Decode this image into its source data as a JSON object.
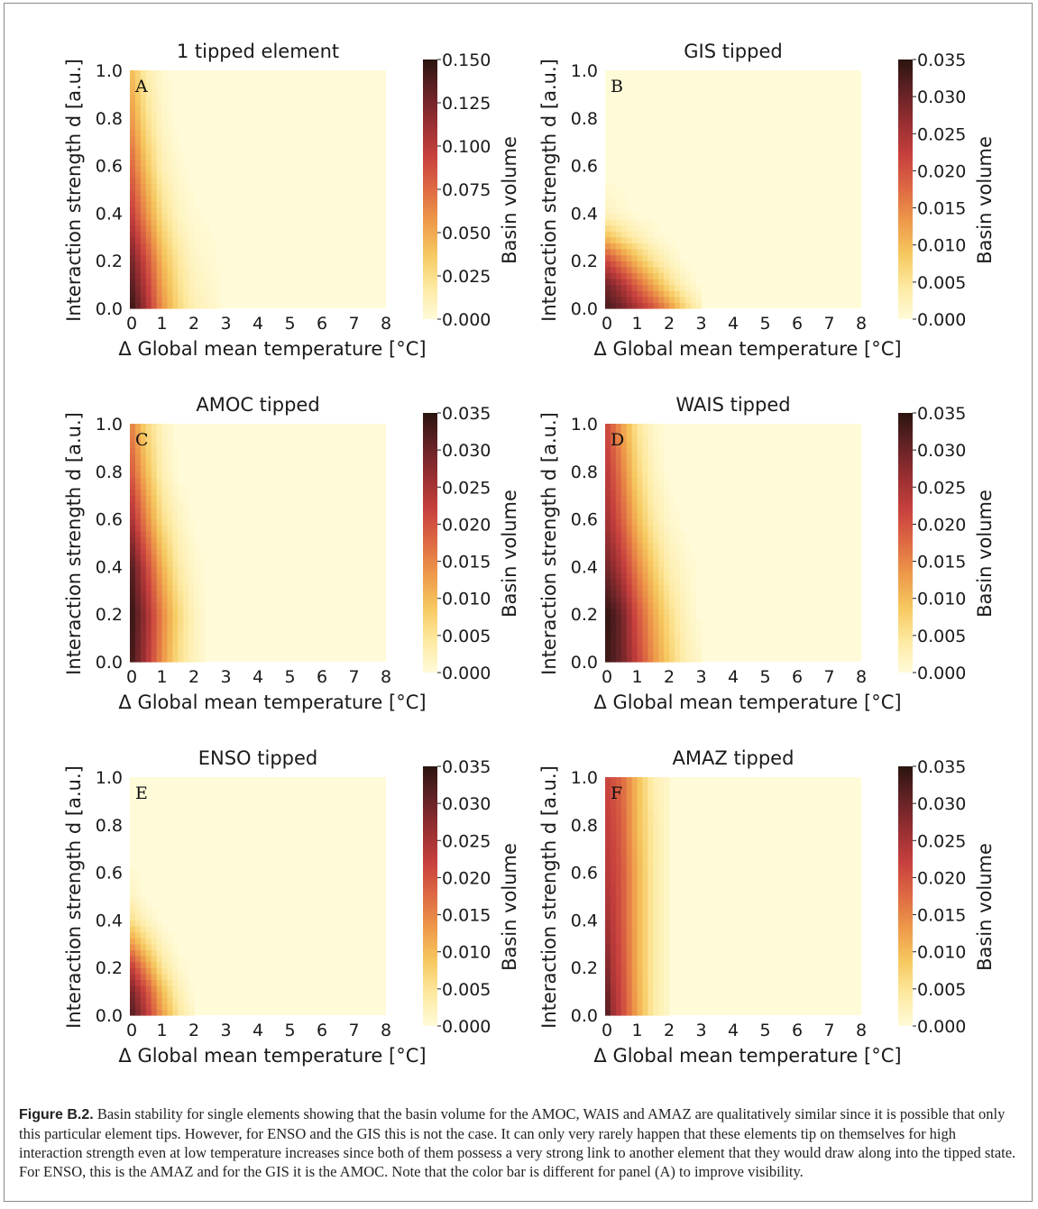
{
  "caption": {
    "label": "Figure B.2.",
    "text": "Basin stability for single elements showing that the basin volume for the AMOC, WAIS and AMAZ are qualitatively similar since it is possible that only this particular element tips. However, for ENSO and the GIS this is not the case. It can only very rarely happen that these elements tip on themselves for high interaction strength even at low temperature increases since both of them possess a very strong link to another element that they would draw along into the tipped state. For ENSO, this is the AMAZ and for the GIS it is the AMOC. Note that the color bar is different for panel (A) to improve visibility."
  },
  "colorscale": [
    "#fffbd9",
    "#fde9a0",
    "#f6c85f",
    "#ee9a4a",
    "#de6a43",
    "#c8413e",
    "#9a2f32",
    "#642226",
    "#2a140f"
  ],
  "chart_data": [
    {
      "type": "heatmap",
      "panel": "A",
      "title": "1 tipped element",
      "xlabel": "Δ Global mean temperature [°C]",
      "ylabel": "Interaction strength d [a.u.]",
      "xlim": [
        0,
        8
      ],
      "ylim": [
        0,
        1
      ],
      "xticks": [
        "0",
        "1",
        "2",
        "3",
        "4",
        "5",
        "6",
        "7",
        "8"
      ],
      "yticks": [
        "0.0",
        "0.2",
        "0.4",
        "0.6",
        "0.8",
        "1.0"
      ],
      "colorbar": {
        "label": "Basin volume",
        "min": 0,
        "max": 0.15,
        "ticks": [
          "0.000",
          "0.025",
          "0.050",
          "0.075",
          "0.100",
          "0.125",
          "0.150"
        ]
      },
      "approx_values": {
        "x": [
          0,
          0.5,
          1,
          1.5,
          2,
          3
        ],
        "y": [
          0,
          0.2,
          0.4,
          0.6,
          0.8,
          1.0
        ],
        "z": [
          [
            0.15,
            0.11,
            0.06,
            0.03,
            0.012,
            0
          ],
          [
            0.13,
            0.09,
            0.045,
            0.02,
            0.006,
            0
          ],
          [
            0.1,
            0.06,
            0.025,
            0.008,
            0.002,
            0
          ],
          [
            0.08,
            0.04,
            0.012,
            0.003,
            0,
            0
          ],
          [
            0.06,
            0.025,
            0.006,
            0,
            0,
            0
          ],
          [
            0.045,
            0.015,
            0.003,
            0,
            0,
            0
          ]
        ]
      }
    },
    {
      "type": "heatmap",
      "panel": "B",
      "title": "GIS tipped",
      "xlabel": "Δ Global mean temperature [°C]",
      "ylabel": "Interaction strength d [a.u.]",
      "xlim": [
        0,
        8
      ],
      "ylim": [
        0,
        1
      ],
      "xticks": [
        "0",
        "1",
        "2",
        "3",
        "4",
        "5",
        "6",
        "7",
        "8"
      ],
      "yticks": [
        "0.0",
        "0.2",
        "0.4",
        "0.6",
        "0.8",
        "1.0"
      ],
      "colorbar": {
        "label": "Basin volume",
        "min": 0,
        "max": 0.035,
        "ticks": [
          "0.000",
          "0.005",
          "0.010",
          "0.015",
          "0.020",
          "0.025",
          "0.030",
          "0.035"
        ]
      },
      "approx_values": {
        "x": [
          0,
          0.5,
          1,
          1.5,
          2,
          2.5,
          3
        ],
        "y": [
          0,
          0.1,
          0.2,
          0.3,
          0.4
        ],
        "z": [
          [
            0.033,
            0.03,
            0.025,
            0.02,
            0.014,
            0.007,
            0.002
          ],
          [
            0.03,
            0.025,
            0.018,
            0.012,
            0.006,
            0.002,
            0
          ],
          [
            0.022,
            0.016,
            0.01,
            0.005,
            0.002,
            0,
            0
          ],
          [
            0.01,
            0.006,
            0.003,
            0.001,
            0,
            0,
            0
          ],
          [
            0.002,
            0.001,
            0,
            0,
            0,
            0,
            0
          ]
        ]
      }
    },
    {
      "type": "heatmap",
      "panel": "C",
      "title": "AMOC tipped",
      "xlabel": "Δ Global mean temperature [°C]",
      "ylabel": "Interaction strength d [a.u.]",
      "xlim": [
        0,
        8
      ],
      "ylim": [
        0,
        1
      ],
      "xticks": [
        "0",
        "1",
        "2",
        "3",
        "4",
        "5",
        "6",
        "7",
        "8"
      ],
      "yticks": [
        "0.0",
        "0.2",
        "0.4",
        "0.6",
        "0.8",
        "1.0"
      ],
      "colorbar": {
        "label": "Basin volume",
        "min": 0,
        "max": 0.035,
        "ticks": [
          "0.000",
          "0.005",
          "0.010",
          "0.015",
          "0.020",
          "0.025",
          "0.030",
          "0.035"
        ]
      },
      "approx_values": {
        "x": [
          0,
          0.5,
          1,
          1.5,
          2,
          2.5
        ],
        "y": [
          0,
          0.2,
          0.4,
          0.6,
          0.8,
          1.0
        ],
        "z": [
          [
            0.034,
            0.025,
            0.014,
            0.006,
            0.002,
            0
          ],
          [
            0.035,
            0.026,
            0.015,
            0.007,
            0.002,
            0
          ],
          [
            0.033,
            0.022,
            0.011,
            0.004,
            0.001,
            0
          ],
          [
            0.026,
            0.015,
            0.006,
            0.002,
            0,
            0
          ],
          [
            0.02,
            0.01,
            0.003,
            0,
            0,
            0
          ],
          [
            0.016,
            0.007,
            0.002,
            0,
            0,
            0
          ]
        ]
      }
    },
    {
      "type": "heatmap",
      "panel": "D",
      "title": "WAIS tipped",
      "xlabel": "Δ Global mean temperature [°C]",
      "ylabel": "Interaction strength d [a.u.]",
      "xlim": [
        0,
        8
      ],
      "ylim": [
        0,
        1
      ],
      "xticks": [
        "0",
        "1",
        "2",
        "3",
        "4",
        "5",
        "6",
        "7",
        "8"
      ],
      "yticks": [
        "0.0",
        "0.2",
        "0.4",
        "0.6",
        "0.8",
        "1.0"
      ],
      "colorbar": {
        "label": "Basin volume",
        "min": 0,
        "max": 0.035,
        "ticks": [
          "0.000",
          "0.005",
          "0.010",
          "0.015",
          "0.020",
          "0.025",
          "0.030",
          "0.035"
        ]
      },
      "approx_values": {
        "x": [
          0,
          0.5,
          1,
          1.5,
          2,
          2.5,
          3
        ],
        "y": [
          0,
          0.2,
          0.4,
          0.6,
          0.8,
          1.0
        ],
        "z": [
          [
            0.034,
            0.03,
            0.022,
            0.014,
            0.008,
            0.003,
            0.001
          ],
          [
            0.035,
            0.03,
            0.02,
            0.012,
            0.006,
            0.002,
            0
          ],
          [
            0.03,
            0.024,
            0.015,
            0.008,
            0.003,
            0.001,
            0
          ],
          [
            0.026,
            0.019,
            0.01,
            0.004,
            0.001,
            0,
            0
          ],
          [
            0.024,
            0.016,
            0.007,
            0.002,
            0,
            0,
            0
          ],
          [
            0.022,
            0.013,
            0.005,
            0.001,
            0,
            0,
            0
          ]
        ]
      }
    },
    {
      "type": "heatmap",
      "panel": "E",
      "title": "ENSO tipped",
      "xlabel": "Δ Global mean temperature [°C]",
      "ylabel": "Interaction strength d [a.u.]",
      "xlim": [
        0,
        8
      ],
      "ylim": [
        0,
        1
      ],
      "xticks": [
        "0",
        "1",
        "2",
        "3",
        "4",
        "5",
        "6",
        "7",
        "8"
      ],
      "yticks": [
        "0.0",
        "0.2",
        "0.4",
        "0.6",
        "0.8",
        "1.0"
      ],
      "colorbar": {
        "label": "Basin volume",
        "min": 0,
        "max": 0.035,
        "ticks": [
          "0.000",
          "0.005",
          "0.010",
          "0.015",
          "0.020",
          "0.025",
          "0.030",
          "0.035"
        ]
      },
      "approx_values": {
        "x": [
          0,
          0.5,
          1,
          1.5,
          2
        ],
        "y": [
          0,
          0.1,
          0.2,
          0.3,
          0.4,
          0.5
        ],
        "z": [
          [
            0.033,
            0.024,
            0.013,
            0.005,
            0.001
          ],
          [
            0.03,
            0.021,
            0.01,
            0.003,
            0
          ],
          [
            0.024,
            0.014,
            0.005,
            0.001,
            0
          ],
          [
            0.014,
            0.007,
            0.002,
            0,
            0
          ],
          [
            0.006,
            0.002,
            0,
            0,
            0
          ],
          [
            0.002,
            0,
            0,
            0,
            0
          ]
        ]
      }
    },
    {
      "type": "heatmap",
      "panel": "F",
      "title": "AMAZ tipped",
      "xlabel": "Δ Global mean temperature [°C]",
      "ylabel": "Interaction strength d [a.u.]",
      "xlim": [
        0,
        8
      ],
      "ylim": [
        0,
        1
      ],
      "xticks": [
        "0",
        "1",
        "2",
        "3",
        "4",
        "5",
        "6",
        "7",
        "8"
      ],
      "yticks": [
        "0.0",
        "0.2",
        "0.4",
        "0.6",
        "0.8",
        "1.0"
      ],
      "colorbar": {
        "label": "Basin volume",
        "min": 0,
        "max": 0.035,
        "ticks": [
          "0.000",
          "0.005",
          "0.010",
          "0.015",
          "0.020",
          "0.025",
          "0.030",
          "0.035"
        ]
      },
      "approx_values": {
        "x": [
          0,
          0.25,
          0.5,
          1,
          1.5,
          2
        ],
        "y": [
          0,
          0.2,
          0.4,
          0.6,
          0.8,
          1.0
        ],
        "z": [
          [
            0.034,
            0.026,
            0.022,
            0.012,
            0.004,
            0.001
          ],
          [
            0.03,
            0.024,
            0.021,
            0.011,
            0.004,
            0.001
          ],
          [
            0.026,
            0.023,
            0.02,
            0.011,
            0.004,
            0.001
          ],
          [
            0.024,
            0.022,
            0.02,
            0.011,
            0.004,
            0.001
          ],
          [
            0.023,
            0.021,
            0.019,
            0.01,
            0.004,
            0.001
          ],
          [
            0.022,
            0.02,
            0.018,
            0.01,
            0.003,
            0.001
          ]
        ]
      }
    }
  ]
}
